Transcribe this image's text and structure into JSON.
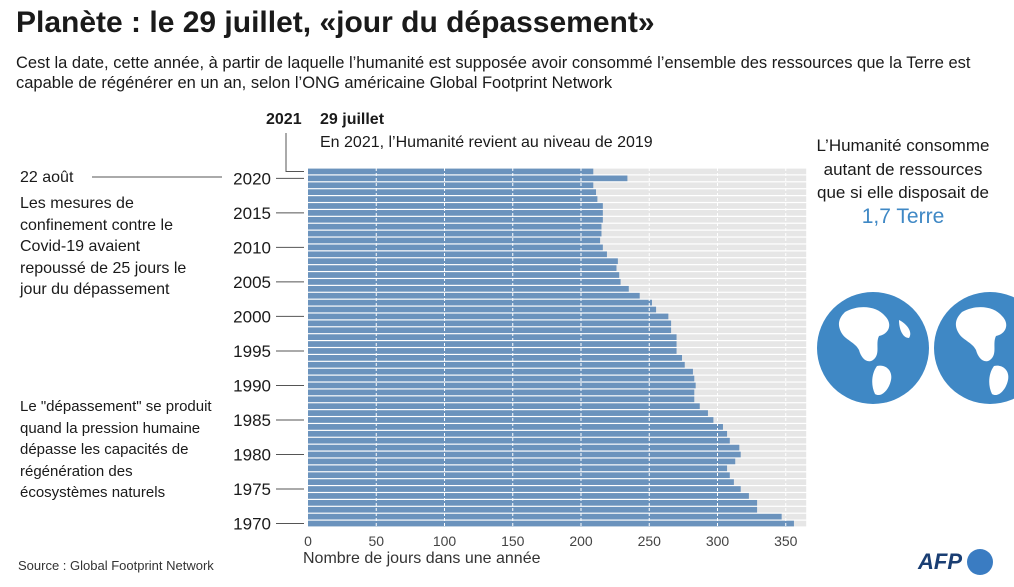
{
  "header": {
    "title": "Planète : le 29 juillet, «jour du dépassement»",
    "subtitle": "Cest la date, cette année, à partir de laquelle l’humanité est supposée avoir consommé l’ensemble des ressources que la Terre est capable de régénérer en un an, selon l’ONG américaine Global Footprint Network"
  },
  "annotation": {
    "year": "2021",
    "date": "29 juillet",
    "text": "En 2021, l’Humanité revient au niveau de 2019"
  },
  "left_notes": {
    "covid_date": "22 août",
    "covid_text": "Les mesures de confinement contre le Covid-19 avaient repoussé de 25 jours le jour du dépassement",
    "definition": "Le \"dépassement\" se produit quand la pression humaine dépasse les capacités de régénération des écosystèmes naturels"
  },
  "right_note": {
    "text": "L’Humanité consomme autant de ressources que si elle disposait de",
    "highlight": "1,7 Terre",
    "highlight_color": "#3f88c5",
    "icons": [
      "globe-icon",
      "globe-icon"
    ]
  },
  "footer": {
    "source": "Source : Global Footprint Network",
    "logo": "AFP"
  },
  "colors": {
    "bar": "#6b93bd",
    "background_band": "#e6e6e6",
    "gridline": "#ffffff",
    "accent": "#3f88c5"
  },
  "chart_data": {
    "type": "bar",
    "orientation": "horizontal",
    "xlabel": "Nombre de jours dans une année",
    "xlim": [
      0,
      365
    ],
    "xticks": [
      0,
      50,
      100,
      150,
      200,
      250,
      300,
      350
    ],
    "ytick_labels": [
      "2020",
      "2015",
      "2010",
      "2005",
      "2000",
      "1995",
      "1990",
      "1985",
      "1980",
      "1975",
      "1970"
    ],
    "categories": [
      2021,
      2020,
      2019,
      2018,
      2017,
      2016,
      2015,
      2014,
      2013,
      2012,
      2011,
      2010,
      2009,
      2008,
      2007,
      2006,
      2005,
      2004,
      2003,
      2002,
      2001,
      2000,
      1999,
      1998,
      1997,
      1996,
      1995,
      1994,
      1993,
      1992,
      1991,
      1990,
      1989,
      1988,
      1987,
      1986,
      1985,
      1984,
      1983,
      1982,
      1981,
      1980,
      1979,
      1978,
      1977,
      1976,
      1975,
      1974,
      1973,
      1972,
      1971,
      1970
    ],
    "values": [
      209,
      234,
      209,
      211,
      212,
      216,
      216,
      216,
      215,
      215,
      214,
      216,
      219,
      227,
      226,
      228,
      229,
      235,
      243,
      252,
      255,
      264,
      266,
      266,
      270,
      270,
      270,
      274,
      276,
      282,
      283,
      284,
      283,
      283,
      287,
      293,
      297,
      304,
      307,
      309,
      316,
      317,
      313,
      307,
      309,
      312,
      317,
      323,
      329,
      329,
      347,
      356
    ]
  }
}
